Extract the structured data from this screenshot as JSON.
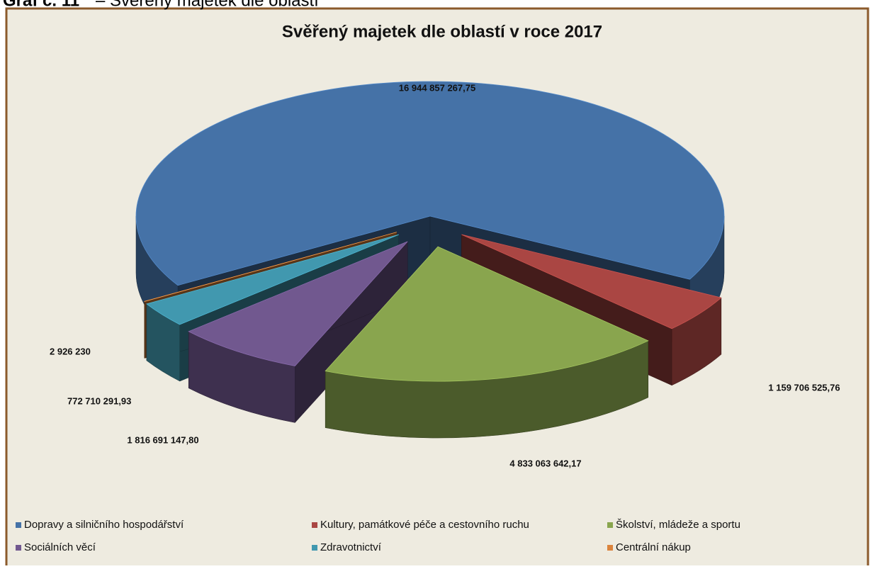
{
  "figure_label": "Graf č. 11",
  "figure_caption": "– Svěřený majetek dle oblastí",
  "chart_data": {
    "type": "pie",
    "title": "Svěřený majetek dle oblastí v roce 2017",
    "categories": [
      "Dopravy a silničního hospodářství",
      "Kultury, památkové péče a cestovního ruchu",
      "Školství, mládeže a sportu",
      "Sociálních věcí",
      "Zdravotnictví",
      "Centrální nákup"
    ],
    "values": [
      16944857267.75,
      1159706525.76,
      4833063642.17,
      1816691147.8,
      772710291.93,
      2926230
    ],
    "value_labels": [
      "16 944 857 267,75",
      "1 159 706 525,76",
      "4 833 063 642,17",
      "1 816 691 147,80",
      "772 710 291,93",
      "2 926 230"
    ],
    "colors": [
      "#4572A7",
      "#AA4643",
      "#89A54E",
      "#71588F",
      "#4198AF",
      "#DB843D"
    ],
    "legend": "bottom"
  }
}
